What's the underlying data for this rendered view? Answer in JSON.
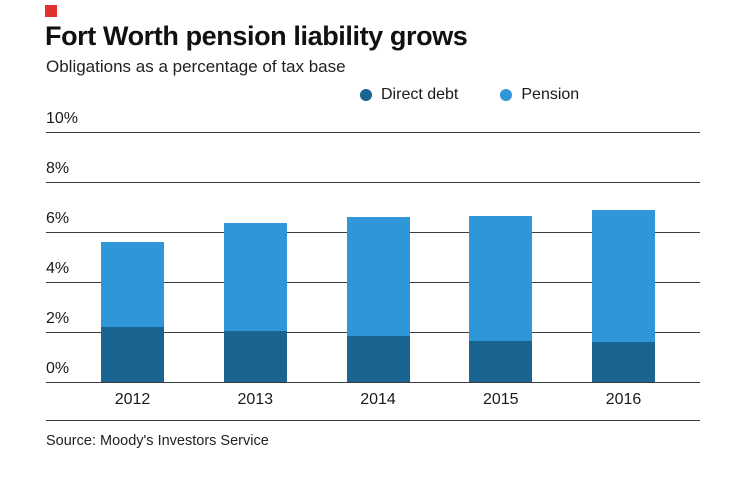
{
  "accent_color": "#e03131",
  "axis_color": "#3c3c3c",
  "chart_data": {
    "type": "bar",
    "stacked": true,
    "title": "Fort Worth pension liability grows",
    "subtitle": "Obligations as a percentage of tax base",
    "source": "Source: Moody's Investors Service",
    "categories": [
      "2012",
      "2013",
      "2014",
      "2015",
      "2016"
    ],
    "series": [
      {
        "name": "Direct debt",
        "color": "#1a6492",
        "values": [
          2.2,
          2.05,
          1.85,
          1.65,
          1.6
        ]
      },
      {
        "name": "Pension",
        "color": "#2f96d8",
        "values": [
          3.4,
          4.3,
          4.75,
          5.0,
          5.3
        ]
      }
    ],
    "totals": [
      5.6,
      6.35,
      6.6,
      6.65,
      6.9
    ],
    "xlabel": "",
    "ylabel": "",
    "ylim": [
      0,
      10
    ],
    "yticks": [
      0,
      2,
      4,
      6,
      8,
      10
    ],
    "ytick_format": "%",
    "grid": true,
    "legend_position": "top-right"
  }
}
